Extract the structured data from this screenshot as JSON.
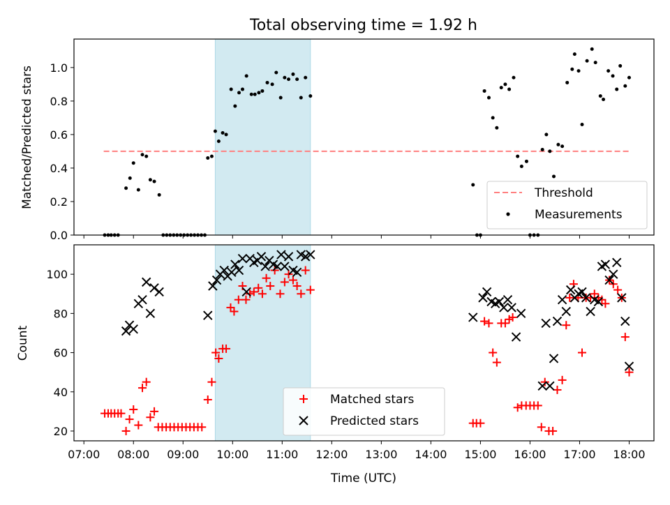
{
  "figure_title": "Total observing time = 1.92 h",
  "colors": {
    "band": "#add8e6",
    "threshold": "#ff7f7f",
    "matched": "#ff0000",
    "predicted": "#000000",
    "measurement": "#000000"
  },
  "chart_data": [
    {
      "type": "scatter",
      "panel": "top",
      "ylabel": "Matched/Predicted stars",
      "xlabel": "",
      "x_unit": "hours UTC",
      "xlim": [
        6.8,
        18.5
      ],
      "ylim": [
        0,
        1.17
      ],
      "yticks": [
        0.0,
        0.2,
        0.4,
        0.6,
        0.8,
        1.0
      ],
      "ytick_labels": [
        "0.0",
        "0.2",
        "0.4",
        "0.6",
        "0.8",
        "1.0"
      ],
      "shaded_interval": [
        9.65,
        11.57
      ],
      "legend_position": "lower-right",
      "legend": [
        "Threshold",
        "Measurements"
      ],
      "threshold": {
        "name": "Threshold",
        "y": 0.5,
        "x_range": [
          7.4,
          18.0
        ],
        "style": "dashed"
      },
      "series": [
        {
          "name": "Measurements",
          "marker": "dot",
          "points": [
            [
              7.42,
              0
            ],
            [
              7.49,
              0
            ],
            [
              7.55,
              0
            ],
            [
              7.62,
              0
            ],
            [
              7.69,
              0
            ],
            [
              7.85,
              0.28
            ],
            [
              7.93,
              0.34
            ],
            [
              8.0,
              0.43
            ],
            [
              8.1,
              0.27
            ],
            [
              8.18,
              0.48
            ],
            [
              8.26,
              0.47
            ],
            [
              8.34,
              0.33
            ],
            [
              8.42,
              0.32
            ],
            [
              8.52,
              0.24
            ],
            [
              8.6,
              0
            ],
            [
              8.67,
              0
            ],
            [
              8.74,
              0
            ],
            [
              8.81,
              0
            ],
            [
              8.88,
              0
            ],
            [
              8.95,
              0
            ],
            [
              9.02,
              0
            ],
            [
              9.09,
              0
            ],
            [
              9.16,
              0
            ],
            [
              9.23,
              0
            ],
            [
              9.3,
              0
            ],
            [
              9.37,
              0
            ],
            [
              9.44,
              0
            ],
            [
              9.5,
              0.46
            ],
            [
              9.58,
              0.47
            ],
            [
              9.65,
              0.62
            ],
            [
              9.72,
              0.56
            ],
            [
              9.8,
              0.61
            ],
            [
              9.87,
              0.6
            ],
            [
              9.97,
              0.87
            ],
            [
              10.05,
              0.77
            ],
            [
              10.13,
              0.85
            ],
            [
              10.2,
              0.87
            ],
            [
              10.28,
              0.95
            ],
            [
              10.38,
              0.84
            ],
            [
              10.45,
              0.84
            ],
            [
              10.53,
              0.85
            ],
            [
              10.6,
              0.86
            ],
            [
              10.7,
              0.91
            ],
            [
              10.8,
              0.9
            ],
            [
              10.88,
              0.97
            ],
            [
              10.97,
              0.82
            ],
            [
              11.05,
              0.94
            ],
            [
              11.13,
              0.93
            ],
            [
              11.22,
              0.96
            ],
            [
              11.3,
              0.93
            ],
            [
              11.38,
              0.82
            ],
            [
              11.47,
              0.94
            ],
            [
              11.57,
              0.83
            ],
            [
              14.85,
              0.3
            ],
            [
              14.93,
              0
            ],
            [
              15.0,
              0
            ],
            [
              15.08,
              0.86
            ],
            [
              15.17,
              0.82
            ],
            [
              15.25,
              0.7
            ],
            [
              15.33,
              0.64
            ],
            [
              15.42,
              0.88
            ],
            [
              15.5,
              0.9
            ],
            [
              15.58,
              0.87
            ],
            [
              15.67,
              0.94
            ],
            [
              15.75,
              0.47
            ],
            [
              15.83,
              0.41
            ],
            [
              15.93,
              0.44
            ],
            [
              16.0,
              0
            ],
            [
              16.08,
              0
            ],
            [
              16.16,
              0
            ],
            [
              16.25,
              0.51
            ],
            [
              16.33,
              0.6
            ],
            [
              16.4,
              0.5
            ],
            [
              16.48,
              0.35
            ],
            [
              16.57,
              0.54
            ],
            [
              16.65,
              0.53
            ],
            [
              16.75,
              0.91
            ],
            [
              16.85,
              0.99
            ],
            [
              16.9,
              1.08
            ],
            [
              16.98,
              0.98
            ],
            [
              17.05,
              0.66
            ],
            [
              17.15,
              1.04
            ],
            [
              17.25,
              1.11
            ],
            [
              17.32,
              1.03
            ],
            [
              17.42,
              0.83
            ],
            [
              17.48,
              0.81
            ],
            [
              17.58,
              0.98
            ],
            [
              17.67,
              0.95
            ],
            [
              17.75,
              0.87
            ],
            [
              17.82,
              1.01
            ],
            [
              17.92,
              0.89
            ],
            [
              18.0,
              0.94
            ]
          ]
        }
      ]
    },
    {
      "type": "scatter",
      "panel": "bottom",
      "ylabel": "Count",
      "xlabel": "Time (UTC)",
      "x_unit": "hours UTC",
      "xlim": [
        6.8,
        18.5
      ],
      "ylim": [
        15,
        115
      ],
      "yticks": [
        20,
        40,
        60,
        80,
        100
      ],
      "ytick_labels": [
        "20",
        "40",
        "60",
        "80",
        "100"
      ],
      "xticks": [
        7,
        8,
        9,
        10,
        11,
        12,
        13,
        14,
        15,
        16,
        17,
        18
      ],
      "xtick_labels": [
        "07:00",
        "08:00",
        "09:00",
        "10:00",
        "11:00",
        "12:00",
        "13:00",
        "14:00",
        "15:00",
        "16:00",
        "17:00",
        "18:00"
      ],
      "shaded_interval": [
        9.65,
        11.57
      ],
      "legend_position": "lower-center",
      "legend": [
        "Matched stars",
        "Predicted stars"
      ],
      "series": [
        {
          "name": "Matched stars",
          "marker": "plus",
          "points": [
            [
              7.42,
              29
            ],
            [
              7.49,
              29
            ],
            [
              7.55,
              29
            ],
            [
              7.62,
              29
            ],
            [
              7.69,
              29
            ],
            [
              7.75,
              29
            ],
            [
              7.85,
              20
            ],
            [
              7.92,
              26
            ],
            [
              8.0,
              31
            ],
            [
              8.1,
              23
            ],
            [
              8.18,
              42
            ],
            [
              8.26,
              45
            ],
            [
              8.34,
              27
            ],
            [
              8.42,
              30
            ],
            [
              8.5,
              22
            ],
            [
              8.58,
              22
            ],
            [
              8.66,
              22
            ],
            [
              8.74,
              22
            ],
            [
              8.82,
              22
            ],
            [
              8.9,
              22
            ],
            [
              8.98,
              22
            ],
            [
              9.06,
              22
            ],
            [
              9.14,
              22
            ],
            [
              9.22,
              22
            ],
            [
              9.3,
              22
            ],
            [
              9.38,
              22
            ],
            [
              9.5,
              36
            ],
            [
              9.58,
              45
            ],
            [
              9.66,
              60
            ],
            [
              9.72,
              57
            ],
            [
              9.8,
              62
            ],
            [
              9.87,
              62
            ],
            [
              9.96,
              83
            ],
            [
              10.03,
              81
            ],
            [
              10.12,
              87
            ],
            [
              10.2,
              94
            ],
            [
              10.27,
              87
            ],
            [
              10.35,
              90
            ],
            [
              10.43,
              91
            ],
            [
              10.52,
              93
            ],
            [
              10.6,
              90
            ],
            [
              10.68,
              98
            ],
            [
              10.76,
              94
            ],
            [
              10.85,
              102
            ],
            [
              10.96,
              90
            ],
            [
              11.05,
              96
            ],
            [
              11.13,
              100
            ],
            [
              11.22,
              97
            ],
            [
              11.3,
              94
            ],
            [
              11.38,
              90
            ],
            [
              11.47,
              102
            ],
            [
              11.57,
              92
            ],
            [
              14.85,
              24
            ],
            [
              14.92,
              24
            ],
            [
              15.0,
              24
            ],
            [
              15.08,
              76
            ],
            [
              15.17,
              75
            ],
            [
              15.25,
              60
            ],
            [
              15.33,
              55
            ],
            [
              15.42,
              75
            ],
            [
              15.5,
              75
            ],
            [
              15.58,
              77
            ],
            [
              15.65,
              78
            ],
            [
              15.75,
              32
            ],
            [
              15.83,
              33
            ],
            [
              15.92,
              33
            ],
            [
              16.0,
              33
            ],
            [
              16.08,
              33
            ],
            [
              16.16,
              33
            ],
            [
              16.23,
              22
            ],
            [
              16.3,
              45
            ],
            [
              16.38,
              20
            ],
            [
              16.46,
              20
            ],
            [
              16.55,
              41
            ],
            [
              16.65,
              46
            ],
            [
              16.73,
              74
            ],
            [
              16.8,
              88
            ],
            [
              16.88,
              95
            ],
            [
              16.97,
              88
            ],
            [
              17.05,
              60
            ],
            [
              17.13,
              88
            ],
            [
              17.22,
              88
            ],
            [
              17.3,
              90
            ],
            [
              17.38,
              88
            ],
            [
              17.45,
              87
            ],
            [
              17.52,
              85
            ],
            [
              17.6,
              97
            ],
            [
              17.68,
              95
            ],
            [
              17.77,
              92
            ],
            [
              17.85,
              88
            ],
            [
              17.92,
              68
            ],
            [
              18.0,
              50
            ]
          ]
        },
        {
          "name": "Predicted stars",
          "marker": "x",
          "points": [
            [
              7.85,
              71
            ],
            [
              7.92,
              74
            ],
            [
              8.0,
              72
            ],
            [
              8.1,
              85
            ],
            [
              8.18,
              87
            ],
            [
              8.26,
              96
            ],
            [
              8.34,
              80
            ],
            [
              8.42,
              93
            ],
            [
              8.52,
              91
            ],
            [
              9.5,
              79
            ],
            [
              9.6,
              94
            ],
            [
              9.68,
              97
            ],
            [
              9.75,
              100
            ],
            [
              9.83,
              102
            ],
            [
              9.9,
              99
            ],
            [
              9.98,
              101
            ],
            [
              10.05,
              105
            ],
            [
              10.13,
              102
            ],
            [
              10.2,
              108
            ],
            [
              10.28,
              91
            ],
            [
              10.35,
              108
            ],
            [
              10.43,
              106
            ],
            [
              10.5,
              107
            ],
            [
              10.58,
              109
            ],
            [
              10.66,
              104
            ],
            [
              10.74,
              107
            ],
            [
              10.82,
              105
            ],
            [
              10.9,
              104
            ],
            [
              10.98,
              110
            ],
            [
              11.05,
              104
            ],
            [
              11.13,
              109
            ],
            [
              11.22,
              102
            ],
            [
              11.3,
              101
            ],
            [
              11.38,
              110
            ],
            [
              11.47,
              109
            ],
            [
              11.57,
              110
            ],
            [
              14.85,
              78
            ],
            [
              15.05,
              88
            ],
            [
              15.13,
              91
            ],
            [
              15.22,
              86
            ],
            [
              15.3,
              85
            ],
            [
              15.38,
              86
            ],
            [
              15.47,
              83
            ],
            [
              15.55,
              87
            ],
            [
              15.63,
              83
            ],
            [
              15.72,
              68
            ],
            [
              15.82,
              80
            ],
            [
              16.25,
              43
            ],
            [
              16.32,
              75
            ],
            [
              16.4,
              43
            ],
            [
              16.48,
              57
            ],
            [
              16.55,
              76
            ],
            [
              16.65,
              87
            ],
            [
              16.73,
              81
            ],
            [
              16.82,
              92
            ],
            [
              16.9,
              88
            ],
            [
              16.98,
              90
            ],
            [
              17.05,
              91
            ],
            [
              17.13,
              88
            ],
            [
              17.22,
              81
            ],
            [
              17.3,
              87
            ],
            [
              17.38,
              86
            ],
            [
              17.45,
              104
            ],
            [
              17.52,
              105
            ],
            [
              17.6,
              97
            ],
            [
              17.68,
              100
            ],
            [
              17.75,
              106
            ],
            [
              17.85,
              88
            ],
            [
              17.92,
              76
            ],
            [
              18.0,
              53
            ]
          ]
        }
      ]
    }
  ]
}
